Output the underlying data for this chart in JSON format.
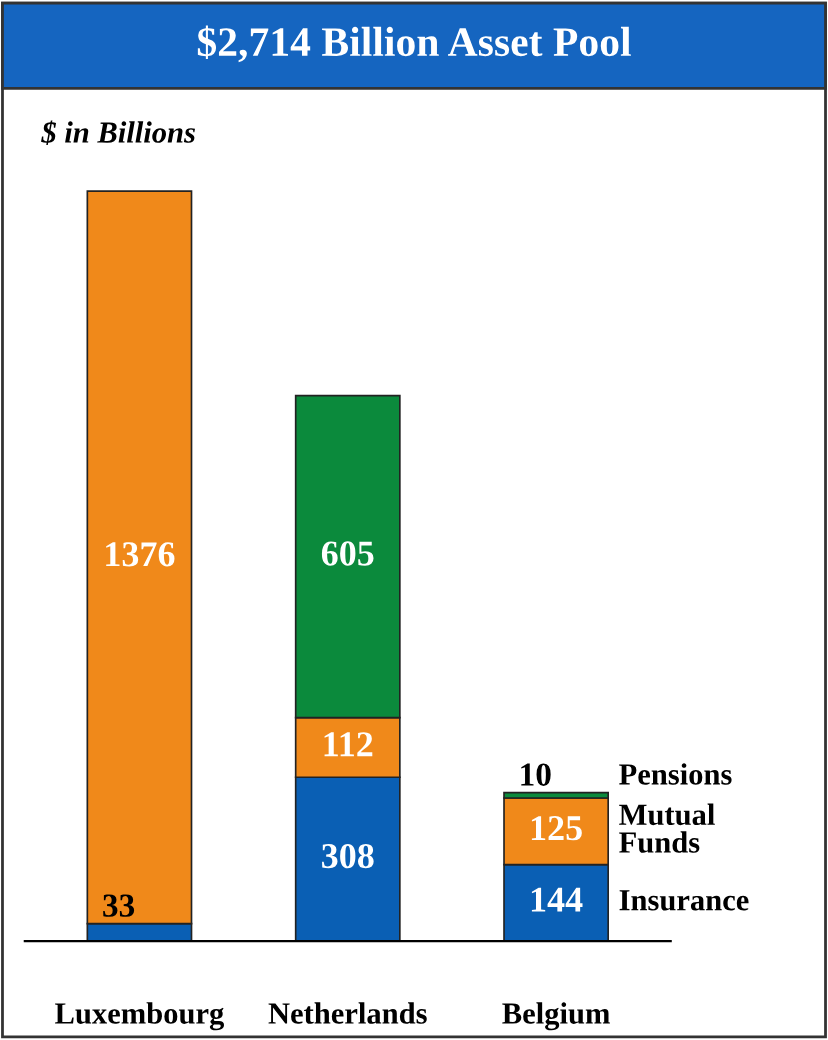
{
  "chart_data": {
    "type": "bar",
    "title": "$2,714 Billion Asset Pool",
    "ylabel": "$ in Billions",
    "categories": [
      "Luxembourg",
      "Netherlands",
      "Belgium"
    ],
    "stacked": true,
    "data_labels": true,
    "legend": "right",
    "series": [
      {
        "name": "Insurance",
        "color": "#0a5fb4",
        "values": [
          33,
          308,
          144
        ]
      },
      {
        "name": "Mutual\nFunds",
        "color": "#f0891a",
        "values": [
          1376,
          112,
          125
        ]
      },
      {
        "name": "Pensions",
        "color": "#0b8a3c",
        "values": [
          null,
          605,
          10
        ]
      }
    ]
  }
}
